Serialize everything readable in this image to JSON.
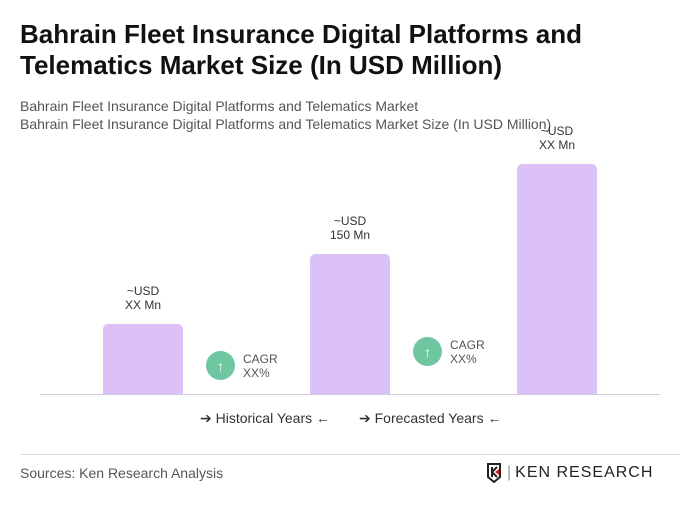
{
  "title": "Bahrain Fleet Insurance Digital Platforms and Telematics Market Size (In USD Million)",
  "subtitle1": "Bahrain Fleet Insurance Digital Platforms and Telematics Market",
  "subtitle2": "Bahrain Fleet Insurance Digital Platforms and Telematics Market Size (In USD Million)",
  "chart_data": {
    "type": "bar",
    "bars": [
      {
        "label_line1": "~USD",
        "label_line2": "XX Mn",
        "value": null
      },
      {
        "label_line1": "~USD",
        "label_line2": "150 Mn",
        "value": 150
      },
      {
        "label_line1": "~USD",
        "label_line2": "XX Mn",
        "value": null
      }
    ],
    "cagr": [
      {
        "line1": "CAGR",
        "line2": "XX%",
        "icon": "arrow-up-icon"
      },
      {
        "line1": "CAGR",
        "line2": "XX%",
        "icon": "arrow-up-icon"
      }
    ],
    "legend": [
      "Historical Years",
      "Forecasted Years"
    ],
    "bar_color": "#dcc1f6",
    "cagr_color": "#6ec7a1"
  },
  "source": "Sources: Ken Research Analysis",
  "logo": "KEN RESEARCH"
}
